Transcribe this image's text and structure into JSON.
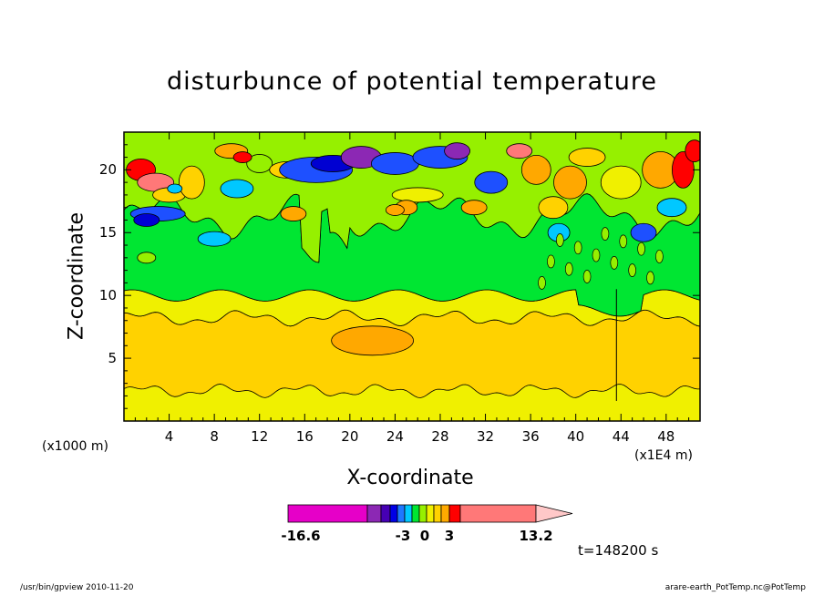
{
  "chart_data": {
    "type": "heatmap",
    "title": "disturbunce of potential temperature",
    "xlabel": "X-coordinate",
    "ylabel": "Z-coordinate",
    "x_unit_label": "(x1000 m)",
    "x_unit_label2": "(x1E4 m)",
    "x_ticks": [
      4,
      8,
      12,
      16,
      20,
      24,
      28,
      32,
      36,
      40,
      44,
      48
    ],
    "y_ticks": [
      5,
      10,
      15,
      20
    ],
    "xlim": [
      0,
      51
    ],
    "ylim": [
      0,
      23
    ],
    "time_label": "t=148200 s",
    "colorbar": {
      "tick_labels": [
        "-16.6",
        "-3",
        "0",
        "3",
        "13.2"
      ],
      "levels": [
        -16.6,
        -10,
        -6,
        -4,
        -3,
        -2,
        -1,
        0,
        1,
        2,
        3,
        5,
        13.2
      ],
      "colors": [
        "#e600c8",
        "#8c28b4",
        "#4600b4",
        "#0000e6",
        "#1e78ff",
        "#00c8ff",
        "#00e632",
        "#96f000",
        "#f0f000",
        "#ffd200",
        "#ffaa00",
        "#ff0000",
        "#ff7878"
      ]
    },
    "field_description": "smooth background bands: yellow near surface, orange 2-8, yellow 8-10, green 10-15, turbulent layer 15-23"
  },
  "footer": {
    "left": "/usr/bin/gpview   2010-11-20",
    "right": "arare-earth_PotTemp.nc@PotTemp"
  },
  "colors": {
    "yellow": "#f0f000",
    "orange": "#ffd200",
    "dark_orange": "#ffa800",
    "green": "#00e632",
    "light_green": "#96f000",
    "cyan": "#00c8ff",
    "blue": "#1e50ff",
    "dark_blue": "#0000d2",
    "purple": "#8c28b4",
    "red": "#ff0000",
    "salmon": "#ff7878"
  }
}
